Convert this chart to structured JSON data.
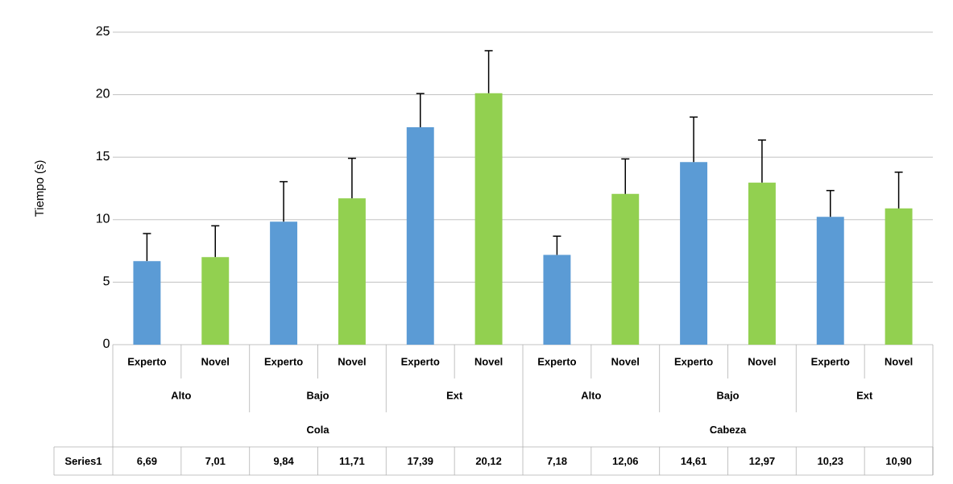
{
  "chart_data": {
    "type": "bar",
    "ylabel": "Tiempo (s)",
    "categories": [
      "Experto",
      "Novel",
      "Experto",
      "Novel",
      "Experto",
      "Novel",
      "Experto",
      "Novel",
      "Experto",
      "Novel",
      "Experto",
      "Novel"
    ],
    "series": [
      {
        "name": "Series1",
        "values": [
          6.69,
          7.01,
          9.84,
          11.71,
          17.39,
          20.12,
          7.18,
          12.06,
          14.61,
          12.97,
          10.23,
          10.9
        ],
        "colors": [
          "#5b9bd5",
          "#92d050",
          "#5b9bd5",
          "#92d050",
          "#5b9bd5",
          "#92d050",
          "#5b9bd5",
          "#92d050",
          "#5b9bd5",
          "#92d050",
          "#5b9bd5",
          "#92d050"
        ],
        "errors": [
          2.2,
          2.5,
          3.2,
          3.2,
          2.7,
          3.4,
          1.5,
          2.8,
          3.6,
          3.4,
          2.1,
          2.9
        ],
        "value_labels": [
          "6,69",
          "7,01",
          "9,84",
          "11,71",
          "17,39",
          "20,12",
          "7,18",
          "12,06",
          "14,61",
          "12,97",
          "10,23",
          "10,90"
        ]
      }
    ],
    "ylim": [
      0,
      25
    ],
    "yticks": [
      0,
      5,
      10,
      15,
      20,
      25
    ],
    "grid": "y",
    "annotations": [
      "Alto",
      "Bajo",
      "Ext",
      "Alto",
      "Bajo",
      "Ext",
      "Cola",
      "Cabeza"
    ]
  }
}
